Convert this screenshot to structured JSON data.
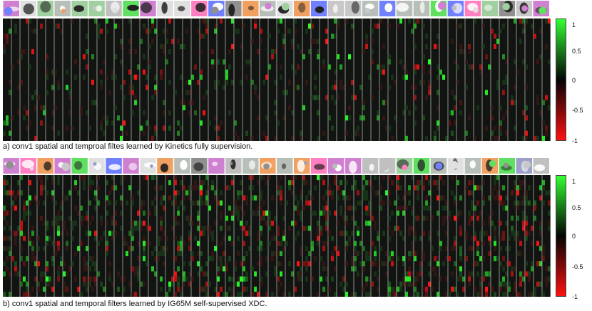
{
  "figure": {
    "panel_a": {
      "caption": "a) conv1 spatial and temproal filtes learned by Kinetics fully supervision.",
      "colorbar_ticks": [
        "1",
        "0.5",
        "0",
        "-0.5",
        "-1"
      ]
    },
    "panel_b": {
      "caption": "b) conv1 spatial and temporal filters learned by IG65M self-supervised XDC.",
      "colorbar_ticks": [
        "1",
        "0.5",
        "0",
        "-0.5",
        "-1"
      ]
    }
  },
  "colors": {
    "positive": "#33ff33",
    "zero": "#050505",
    "negative": "#ff1010",
    "separator": "#c8c8c8"
  }
}
